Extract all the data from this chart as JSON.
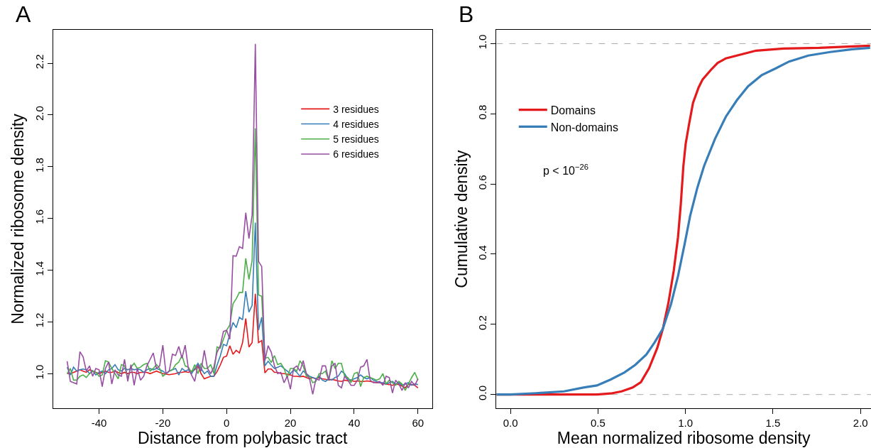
{
  "chart_data": [
    {
      "type": "line",
      "title": "A",
      "xlabel": "Distance from polybasic tract",
      "ylabel": "Normalized ribosome density",
      "legend": "top right",
      "x": [
        -50,
        -49,
        -48,
        -47,
        -46,
        -45,
        -44,
        -43,
        -42,
        -41,
        -40,
        -39,
        -38,
        -37,
        -36,
        -35,
        -34,
        -33,
        -32,
        -31,
        -30,
        -29,
        -28,
        -27,
        -26,
        -25,
        -24,
        -23,
        -22,
        -21,
        -20,
        -19,
        -18,
        -17,
        -16,
        -15,
        -14,
        -13,
        -12,
        -11,
        -10,
        -9,
        -8,
        -7,
        -6,
        -5,
        -4,
        -3,
        -2,
        -1,
        0,
        1,
        2,
        3,
        4,
        5,
        6,
        7,
        8,
        9,
        10,
        11,
        12,
        13,
        14,
        15,
        16,
        17,
        18,
        19,
        20,
        21,
        22,
        23,
        24,
        25,
        26,
        27,
        28,
        29,
        30,
        31,
        32,
        33,
        34,
        35,
        36,
        37,
        38,
        39,
        40,
        41,
        42,
        43,
        44,
        45,
        46,
        47,
        48,
        49,
        50,
        51,
        52,
        53,
        54,
        55,
        56,
        57,
        58,
        59,
        60
      ],
      "xlim": [
        -54.4,
        64.4
      ],
      "ylim": [
        0.865,
        2.33
      ],
      "xticks": [
        -40,
        -20,
        0,
        20,
        40,
        60
      ],
      "yticks": [
        {
          "value": 1.0,
          "label": "1.0"
        },
        {
          "value": 1.2,
          "label": "1.2"
        },
        {
          "value": 1.4,
          "label": "1.4"
        },
        {
          "value": 1.6,
          "label": "1.6"
        },
        {
          "value": 1.8,
          "label": "1.8"
        },
        {
          "value": 2.0,
          "label": "2.0"
        },
        {
          "value": 2.2,
          "label": "2.2"
        }
      ],
      "series": [
        {
          "name": "3 residues",
          "color": "#e41a1c",
          "values": [
            1.0,
            1.0,
            1.005,
            1.01,
            1.015,
            1.01,
            1.005,
            1.015,
            1.01,
            1.005,
            1.0,
            1.005,
            1.01,
            1.005,
            1.005,
            1.01,
            1.005,
            1.0,
            1.005,
            1.0,
            1.005,
            1.005,
            1.0,
            1.005,
            1.005,
            1.005,
            1.0,
            1.005,
            1.01,
            1.005,
            1.0,
            0.998,
            0.996,
            0.998,
            1.0,
            1.005,
            1.005,
            1.008,
            1.005,
            1.01,
            1.015,
            1.03,
            1.0,
            0.98,
            0.985,
            0.99,
            0.99,
            1.008,
            1.033,
            1.063,
            1.068,
            1.108,
            1.075,
            1.09,
            1.08,
            1.12,
            1.213,
            1.103,
            1.12,
            1.309,
            1.12,
            1.128,
            1.003,
            1.018,
            1.018,
            1.005,
            1.005,
            1.0,
            1.0,
            0.998,
            0.995,
            0.99,
            0.99,
            0.988,
            0.99,
            0.985,
            0.98,
            0.985,
            0.98,
            0.985,
            0.98,
            0.978,
            0.975,
            0.978,
            0.975,
            0.972,
            0.97,
            0.975,
            0.972,
            0.975,
            0.97,
            0.972,
            0.97,
            0.97,
            0.972,
            0.97,
            0.968,
            0.965,
            0.965,
            0.962,
            0.96,
            0.958,
            0.955,
            0.96,
            0.958,
            0.952,
            0.945,
            0.96,
            0.958,
            0.955,
            0.945
          ]
        },
        {
          "name": "4 residues",
          "color": "#377eb8",
          "values": [
            1.025,
            0.995,
            1.025,
            1.01,
            1.015,
            1.018,
            1.015,
            1.0,
            1.012,
            0.995,
            1.005,
            1.01,
            1.0,
            1.015,
            1.02,
            1.035,
            1.015,
            1.01,
            1.02,
            1.015,
            1.02,
            1.015,
            1.018,
            1.015,
            1.005,
            1.015,
            1.02,
            1.015,
            1.02,
            1.015,
            1.01,
            1.0,
            1.01,
            1.015,
            1.02,
            0.995,
            1.02,
            1.01,
            1.015,
            1.0,
            1.02,
            1.04,
            1.02,
            1.0,
            1.01,
            0.99,
            0.99,
            1.033,
            1.068,
            1.113,
            1.108,
            1.153,
            1.198,
            1.178,
            1.218,
            1.208,
            1.319,
            1.238,
            1.264,
            1.584,
            1.168,
            1.218,
            1.03,
            1.048,
            1.033,
            1.02,
            1.025,
            1.03,
            1.02,
            1.01,
            1.0,
            1.015,
            1.005,
            0.99,
            1.01,
            1.0,
            0.99,
            0.985,
            0.98,
            0.99,
            0.975,
            0.97,
            0.98,
            0.975,
            0.985,
            0.99,
            1.01,
            1.0,
            0.98,
            0.975,
            0.98,
            0.985,
            0.995,
            0.985,
            0.98,
            0.985,
            0.975,
            0.97,
            0.965,
            0.965,
            0.96,
            0.965,
            0.97,
            0.96,
            0.965,
            0.955,
            0.96,
            0.965,
            0.955,
            0.96,
            0.958
          ]
        },
        {
          "name": "5 residues",
          "color": "#4daf4a",
          "values": [
            1.0,
            1.02,
            0.975,
            0.975,
            0.99,
            0.995,
            0.985,
            1.0,
            1.01,
            1.005,
            0.99,
            0.995,
            1.05,
            1.045,
            1.02,
            1.0,
            0.98,
            1.035,
            1.03,
            0.98,
            1.025,
            1.04,
            1.02,
            1.025,
            1.035,
            1.04,
            1.01,
            1.02,
            1.035,
            1.02,
            0.99,
            1.0,
            1.01,
            1.015,
            1.035,
            1.045,
            1.07,
            1.03,
            1.025,
            1.005,
            1.035,
            1.0,
            1.04,
            1.02,
            1.02,
            1.035,
            1.0,
            1.103,
            1.098,
            1.133,
            1.168,
            1.188,
            1.27,
            1.289,
            1.314,
            1.314,
            1.446,
            1.364,
            1.439,
            1.948,
            1.304,
            1.299,
            1.06,
            1.063,
            1.043,
            1.07,
            1.035,
            1.04,
            1.02,
            0.985,
            1.02,
            1.02,
            1.01,
            1.05,
            1.03,
            0.99,
            0.99,
            0.965,
            0.97,
            1.0,
            1.0,
            1.01,
            0.975,
            1.05,
            1.02,
            1.04,
            1.04,
            0.99,
            0.985,
            0.965,
            1.0,
            1.005,
            0.95,
            0.985,
            0.99,
            0.985,
            0.98,
            0.975,
            0.98,
            1.0,
            0.96,
            0.975,
            0.965,
            0.955,
            0.97,
            0.96,
            0.935,
            0.96,
            0.985,
            1.005,
            0.975
          ]
        },
        {
          "name": "6 residues",
          "color": "#984ea3",
          "values": [
            1.048,
            0.97,
            0.965,
            0.96,
            1.085,
            1.065,
            1.01,
            1.03,
            0.99,
            1.02,
            1.015,
            0.95,
            1.02,
            1.045,
            0.96,
            1.015,
            0.995,
            0.99,
            1.055,
            0.97,
            1.035,
            0.955,
            1.02,
            0.975,
            0.99,
            1.03,
            1.055,
            1.08,
            1.02,
            1.03,
            1.11,
            1.0,
            1.01,
            1.075,
            1.07,
            1.105,
            1.06,
            1.11,
            1.02,
            0.995,
            0.97,
            1.035,
            1.01,
            1.09,
            1.02,
            1.0,
            1.025,
            1.083,
            1.108,
            1.163,
            1.168,
            1.133,
            1.456,
            1.454,
            1.491,
            1.484,
            1.622,
            1.522,
            1.614,
            2.275,
            1.434,
            1.414,
            1.05,
            1.108,
            1.083,
            1.03,
            1.0,
            1.005,
            0.965,
            0.99,
            0.94,
            1.02,
            1.03,
            1.01,
            1.05,
            1.0,
            0.98,
            0.92,
            0.98,
            0.975,
            1.03,
            1.03,
            0.975,
            1.03,
            1.04,
            0.955,
            0.945,
            0.99,
            0.975,
            0.955,
            0.955,
            0.975,
            1.025,
            1.03,
            1.055,
            0.975,
            0.965,
            0.965,
            0.97,
            0.955,
            0.99,
            0.985,
            0.925,
            0.975,
            0.96,
            0.935,
            0.965,
            0.945,
            0.97,
            0.955,
            0.98
          ]
        }
      ]
    },
    {
      "type": "line",
      "title": "B",
      "xlabel": "Mean normalized ribosome density",
      "ylabel": "Cumulative density",
      "legend": "top left",
      "annotations": [
        "p < 10$^{−26}$"
      ],
      "xlim": [
        -0.08,
        2.06
      ],
      "ylim": [
        -0.04,
        1.04
      ],
      "xticks": [
        {
          "value": 0,
          "label": "0.0"
        },
        {
          "value": 0.5,
          "label": "0.5"
        },
        {
          "value": 1.0,
          "label": "1.0"
        },
        {
          "value": 1.5,
          "label": "1.5"
        },
        {
          "value": 2.0,
          "label": "2.0"
        }
      ],
      "yticks": [
        {
          "value": 0,
          "label": "0.0"
        },
        {
          "value": 0.2,
          "label": "0.2"
        },
        {
          "value": 0.4,
          "label": "0.4"
        },
        {
          "value": 0.6,
          "label": "0.6"
        },
        {
          "value": 0.8,
          "label": "0.8"
        },
        {
          "value": 1.0,
          "label": "1.0"
        }
      ],
      "ref_lines": [
        {
          "axis": "y",
          "value": 0,
          "color": "#aaaaaa",
          "line_style": "dashed"
        },
        {
          "axis": "y",
          "value": 1,
          "color": "#aaaaaa",
          "line_style": "dashed"
        }
      ],
      "series": [
        {
          "name": "Domains",
          "color": "#e41a1c",
          "x": [
            -0.08,
            0.0,
            0.494,
            0.573,
            0.635,
            0.698,
            0.745,
            0.792,
            0.839,
            0.871,
            0.902,
            0.933,
            0.957,
            0.973,
            0.988,
            1.001,
            1.02,
            1.043,
            1.075,
            1.098,
            1.145,
            1.184,
            1.231,
            1.325,
            1.404,
            1.561,
            1.765,
            1.953,
            2.055
          ],
          "values": [
            0,
            0,
            0,
            0.003,
            0.009,
            0.02,
            0.035,
            0.075,
            0.133,
            0.188,
            0.26,
            0.353,
            0.447,
            0.541,
            0.651,
            0.714,
            0.769,
            0.831,
            0.875,
            0.898,
            0.925,
            0.945,
            0.958,
            0.97,
            0.98,
            0.986,
            0.988,
            0.992,
            0.994
          ]
        },
        {
          "name": "Non-domains",
          "color": "#377eb8",
          "x": [
            -0.08,
            0.0,
            0.149,
            0.306,
            0.416,
            0.494,
            0.573,
            0.651,
            0.714,
            0.776,
            0.824,
            0.871,
            0.918,
            0.957,
            0.996,
            1.027,
            1.067,
            1.106,
            1.169,
            1.231,
            1.294,
            1.357,
            1.435,
            1.514,
            1.592,
            1.702,
            1.827,
            1.953,
            2.055
          ],
          "values": [
            0,
            0,
            0.004,
            0.009,
            0.02,
            0.026,
            0.043,
            0.063,
            0.085,
            0.114,
            0.149,
            0.188,
            0.259,
            0.337,
            0.431,
            0.51,
            0.588,
            0.651,
            0.729,
            0.792,
            0.839,
            0.878,
            0.91,
            0.929,
            0.949,
            0.966,
            0.976,
            0.984,
            0.988
          ]
        }
      ]
    }
  ]
}
